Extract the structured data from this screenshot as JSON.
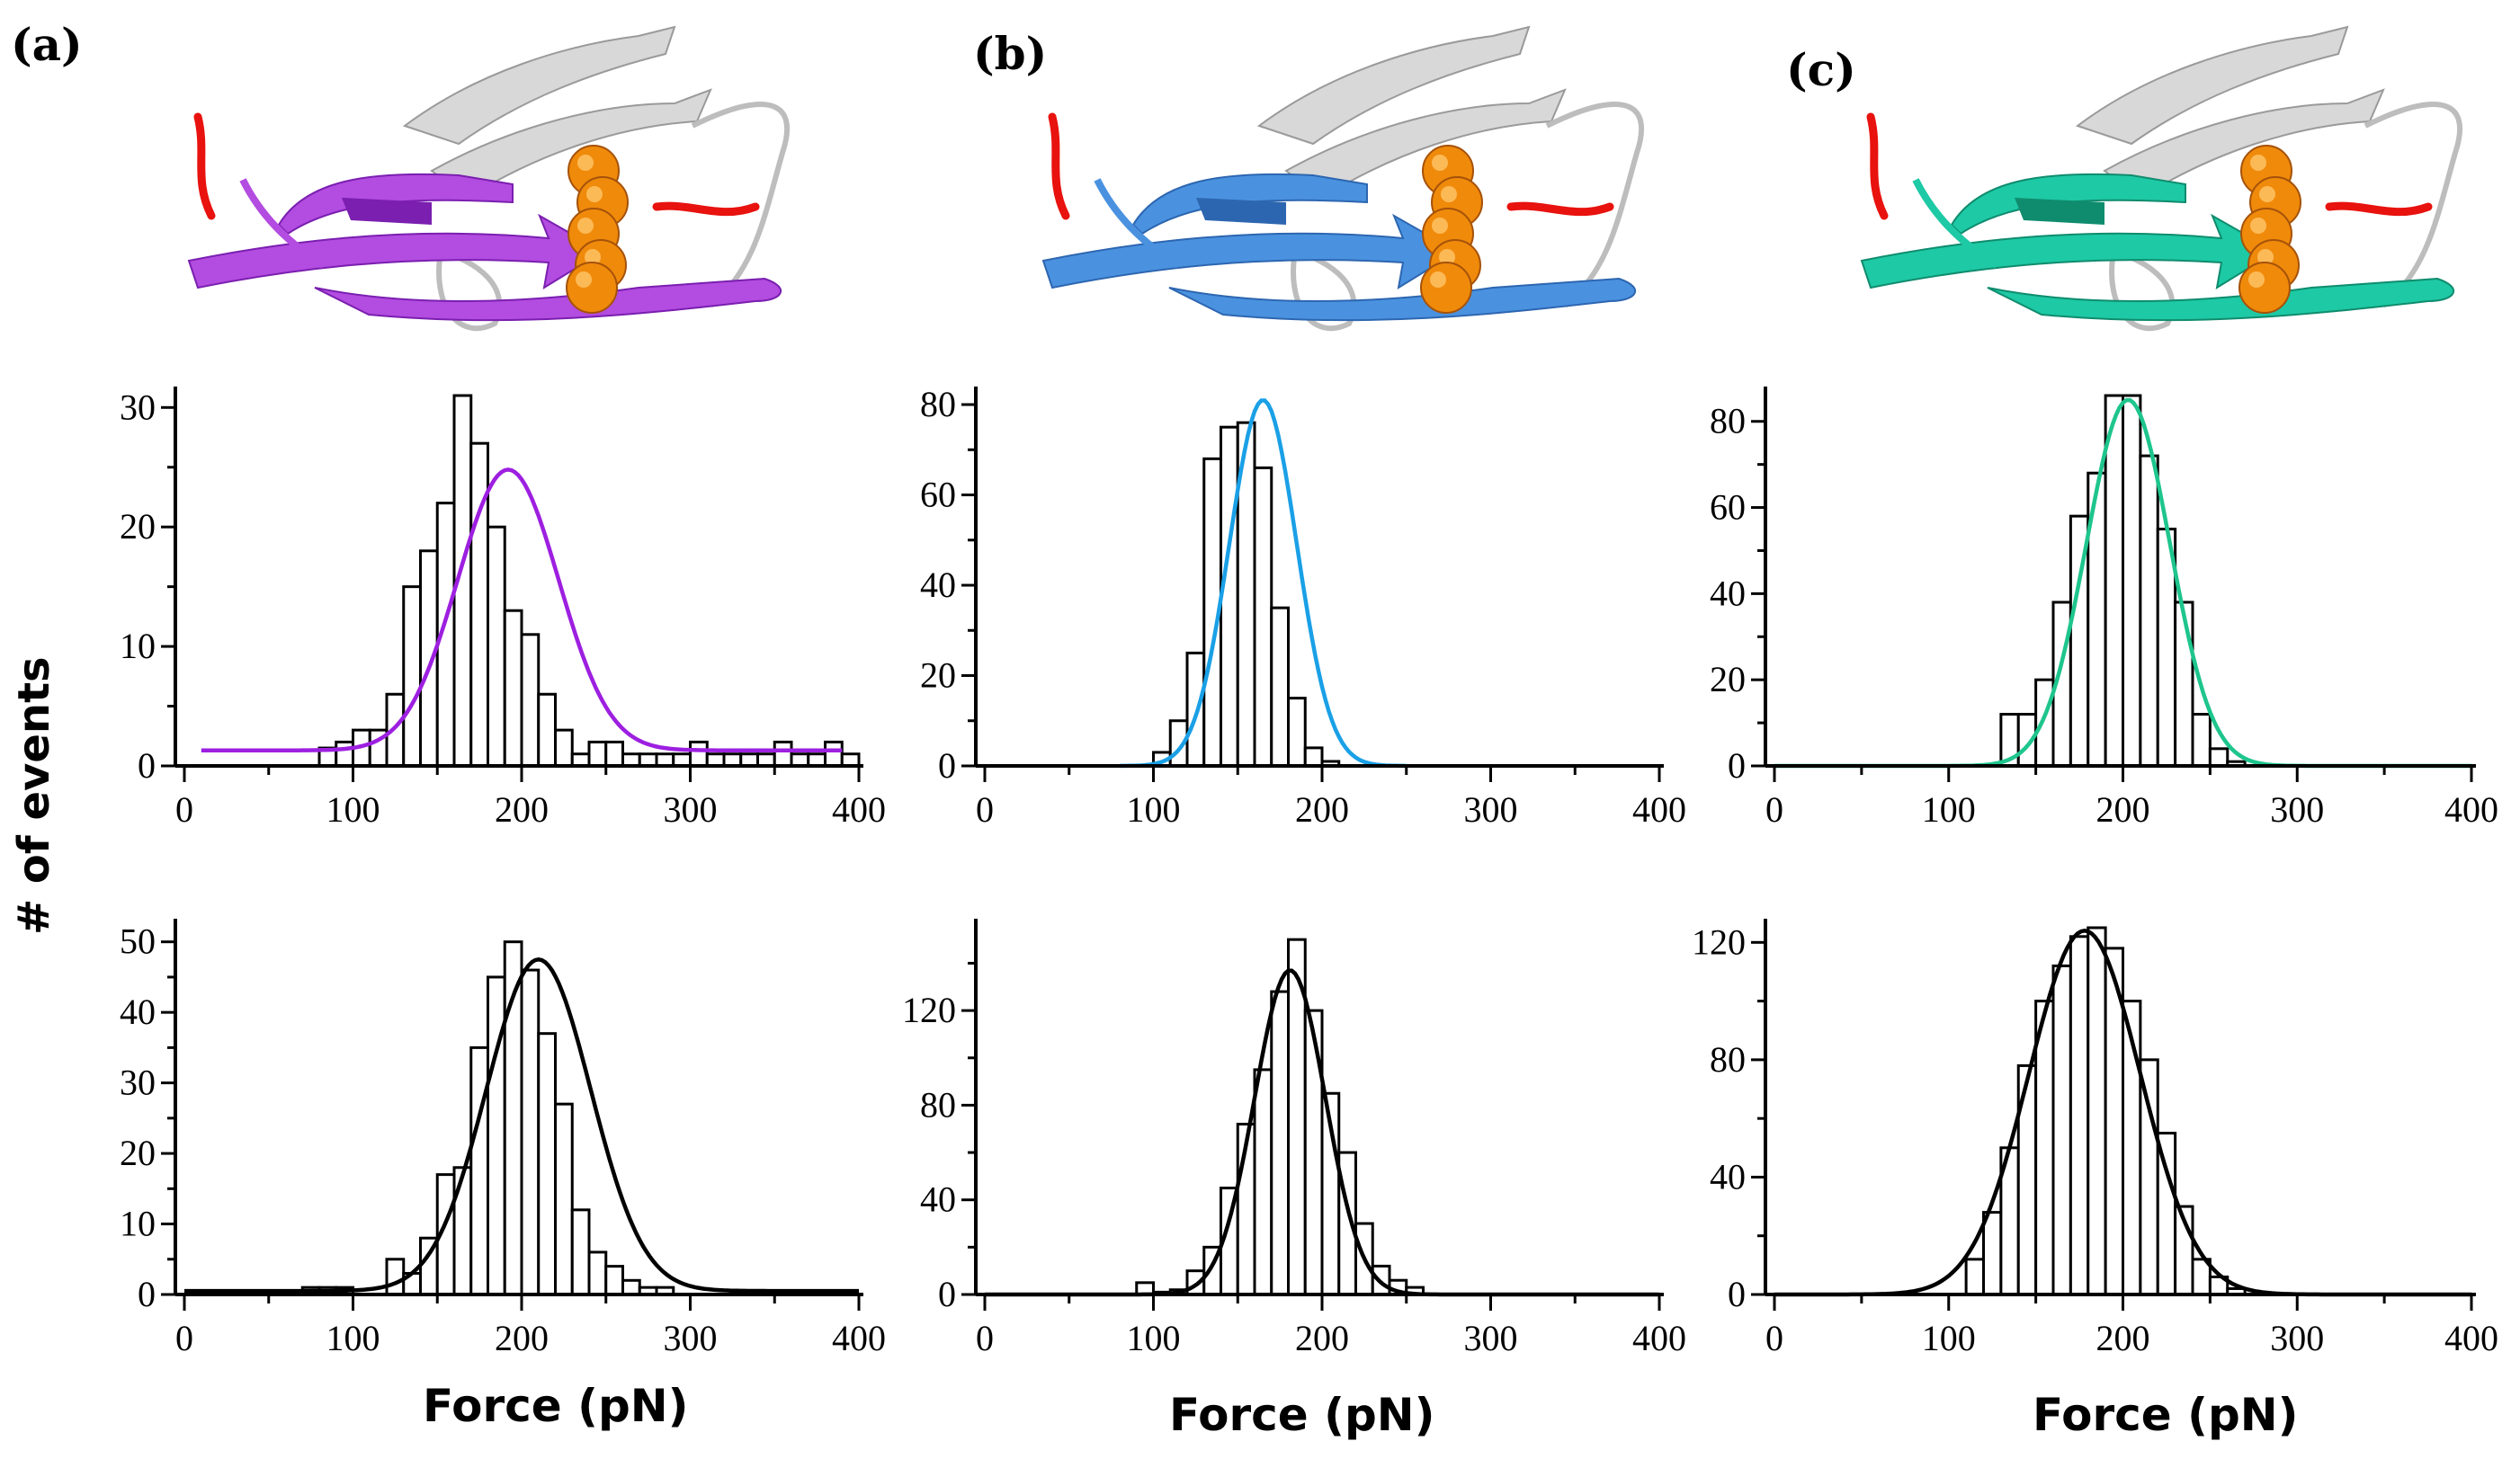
{
  "panels": [
    {
      "label": "(a)",
      "fit_color": "#9d1fe0",
      "struct_color": "#b34ce0",
      "struct_dark": "#7a1fb0"
    },
    {
      "label": "(b)",
      "fit_color": "#1aa0e6",
      "struct_color": "#4a92e0",
      "struct_dark": "#2d66b0"
    },
    {
      "label": "(c)",
      "fit_color": "#1ec58c",
      "struct_color": "#1ec9a5",
      "struct_dark": "#0f8c6e"
    }
  ],
  "structure_colors": {
    "loop": "#d8d8d8",
    "terminus": "#e8120e",
    "sphere": "#f08a0a"
  },
  "ylabel": "# of events",
  "xlabel": "Force (pN)",
  "chart_data": [
    {
      "id": "a-top",
      "type": "bar",
      "panel": "(a)",
      "row": "top",
      "fit": "gaussian",
      "fit_color": "#9d1fe0",
      "xlim": [
        0,
        400
      ],
      "ylim": [
        0,
        31
      ],
      "xticks": [
        0,
        100,
        200,
        300,
        400
      ],
      "yticks": [
        0,
        10,
        20,
        30
      ],
      "bin_start": 80,
      "bin_width": 10,
      "values": [
        1.5,
        2,
        3,
        3,
        6,
        15,
        18,
        22,
        31,
        27,
        20,
        13,
        11,
        6,
        3,
        1,
        2,
        2,
        1,
        1,
        1,
        1,
        2,
        1,
        1,
        1,
        1,
        2,
        1,
        1,
        2,
        1
      ],
      "fit_params": {
        "amp": 23.5,
        "mu": 192,
        "sigma": 30,
        "base": 1.3
      },
      "fit_range": [
        10,
        390
      ]
    },
    {
      "id": "b-top",
      "type": "bar",
      "panel": "(b)",
      "row": "top",
      "fit": "gaussian",
      "fit_color": "#1aa0e6",
      "xlim": [
        0,
        400
      ],
      "ylim": [
        0,
        82
      ],
      "xticks": [
        0,
        100,
        200,
        300,
        400
      ],
      "yticks": [
        0,
        20,
        40,
        60,
        80
      ],
      "bin_start": 100,
      "bin_width": 10,
      "values": [
        3,
        10,
        25,
        68,
        75,
        76,
        66,
        35,
        15,
        4,
        1
      ],
      "fit_params": {
        "amp": 81,
        "mu": 165,
        "sigma": 20,
        "base": 0
      },
      "fit_range": [
        80,
        250
      ]
    },
    {
      "id": "c-top",
      "type": "bar",
      "panel": "(c)",
      "row": "top",
      "fit": "gaussian",
      "fit_color": "#1ec58c",
      "xlim": [
        0,
        400
      ],
      "ylim": [
        0,
        86
      ],
      "xticks": [
        0,
        100,
        200,
        300,
        400
      ],
      "yticks": [
        0,
        20,
        40,
        60,
        80
      ],
      "bin_start": 130,
      "bin_width": 10,
      "values": [
        12,
        12,
        20,
        38,
        58,
        68,
        86,
        86,
        72,
        55,
        38,
        12,
        4,
        1
      ],
      "fit_params": {
        "amp": 85,
        "mu": 203,
        "sigma": 24,
        "base": 0
      },
      "fit_range": [
        0,
        400
      ]
    },
    {
      "id": "a-bottom",
      "type": "bar",
      "panel": "(a)",
      "row": "bottom",
      "fit": "gaussian",
      "fit_color": "#000000",
      "xlim": [
        0,
        400
      ],
      "ylim": [
        0,
        52
      ],
      "xticks": [
        0,
        100,
        200,
        300,
        400
      ],
      "yticks": [
        0,
        10,
        20,
        30,
        40,
        50
      ],
      "bin_start": 70,
      "bin_width": 10,
      "values": [
        1,
        1,
        1,
        0,
        0,
        5,
        3,
        8,
        17,
        18,
        35,
        45,
        50,
        46,
        37,
        27,
        12,
        6,
        4,
        2,
        1,
        1
      ],
      "fit_params": {
        "amp": 47,
        "mu": 210,
        "sigma": 31,
        "base": 0.5
      },
      "fit_range": [
        0,
        400
      ]
    },
    {
      "id": "b-bottom",
      "type": "bar",
      "panel": "(b)",
      "row": "bottom",
      "fit": "gaussian",
      "fit_color": "#000000",
      "xlim": [
        0,
        400
      ],
      "ylim": [
        0,
        155
      ],
      "xticks": [
        0,
        100,
        200,
        300,
        400
      ],
      "yticks": [
        0,
        40,
        80,
        120
      ],
      "bin_start": 90,
      "bin_width": 10,
      "values": [
        5,
        1,
        2,
        10,
        20,
        45,
        72,
        95,
        128,
        150,
        120,
        85,
        60,
        30,
        12,
        6,
        3
      ],
      "fit_params": {
        "amp": 137,
        "mu": 181,
        "sigma": 21,
        "base": 0
      },
      "fit_range": [
        0,
        400
      ]
    },
    {
      "id": "c-bottom",
      "type": "bar",
      "panel": "(c)",
      "row": "bottom",
      "fit": "gaussian",
      "fit_color": "#000000",
      "xlim": [
        0,
        400
      ],
      "ylim": [
        0,
        125
      ],
      "xticks": [
        0,
        100,
        200,
        300,
        400
      ],
      "yticks": [
        0,
        40,
        80,
        120
      ],
      "bin_start": 110,
      "bin_width": 10,
      "values": [
        12,
        28,
        50,
        78,
        100,
        112,
        122,
        125,
        118,
        100,
        80,
        55,
        30,
        12,
        6,
        2
      ],
      "fit_params": {
        "amp": 124,
        "mu": 178,
        "sigma": 32,
        "base": 0
      },
      "fit_range": [
        0,
        400
      ]
    }
  ]
}
